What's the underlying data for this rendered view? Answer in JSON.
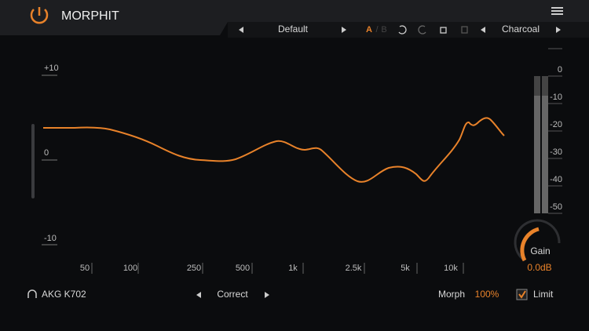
{
  "header": {
    "title": "MORPHIT"
  },
  "toolbar": {
    "preset": "Default",
    "a": "A",
    "b": "B",
    "theme": "Charcoal"
  },
  "graph": {
    "y_labels": [
      "+10",
      "0",
      "-10"
    ],
    "x_labels": [
      "50",
      "100",
      "250",
      "500",
      "1k",
      "2.5k",
      "5k",
      "10k"
    ]
  },
  "meter": {
    "labels": [
      "0",
      "-10",
      "-20",
      "-30",
      "-40",
      "-50"
    ]
  },
  "gain": {
    "label": "Gain",
    "value": "0.0dB"
  },
  "footer": {
    "headphone": "AKG K702",
    "mode": "Correct",
    "morph_label": "Morph",
    "morph_value": "100%",
    "limit": "Limit"
  }
}
